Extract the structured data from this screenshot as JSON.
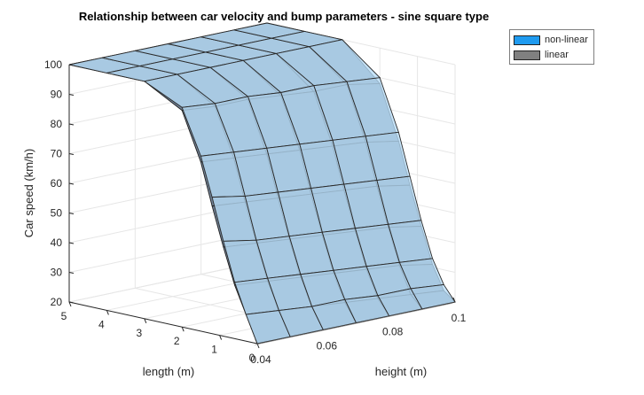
{
  "chart_data": {
    "type": "surface3d",
    "title": "Relationship between car velocity and bump parameters - sine square type",
    "xlabel": "height (m)",
    "ylabel": "length (m)",
    "zlabel": "Car speed (km/h)",
    "x_ticks": [
      "0.04",
      "0.06",
      "0.08",
      "0.1"
    ],
    "y_ticks": [
      "0",
      "1",
      "2",
      "3",
      "4",
      "5"
    ],
    "z_ticks": [
      "20",
      "30",
      "40",
      "50",
      "60",
      "70",
      "80",
      "90",
      "100"
    ],
    "xlim": [
      0.04,
      0.1
    ],
    "ylim": [
      0,
      5
    ],
    "zlim": [
      20,
      100
    ],
    "grid": true,
    "legend_position": "top-right",
    "heights": [
      0.04,
      0.05,
      0.06,
      0.07,
      0.08,
      0.09,
      0.1
    ],
    "lengths": [
      0,
      0.3,
      0.6,
      0.9,
      1.2,
      1.5,
      2,
      3,
      4,
      5
    ],
    "series": [
      {
        "name": "non-linear",
        "color": "#1f9bf0",
        "values": [
          [
            20,
            20,
            20,
            20,
            20,
            20,
            20
          ],
          [
            29,
            28,
            27,
            27,
            26,
            26,
            25
          ],
          [
            39,
            38,
            37,
            36,
            35,
            34,
            33
          ],
          [
            52,
            50,
            49,
            48,
            47,
            46,
            45
          ],
          [
            66,
            64,
            63,
            62,
            61,
            60,
            59
          ],
          [
            79,
            78,
            77,
            76,
            75,
            74,
            73
          ],
          [
            94,
            93,
            93,
            92,
            92,
            91,
            90
          ],
          [
            100,
            100,
            100,
            100,
            100,
            100,
            100
          ],
          [
            100,
            100,
            100,
            100,
            100,
            100,
            100
          ],
          [
            100,
            100,
            100,
            100,
            100,
            100,
            100
          ]
        ]
      },
      {
        "name": "linear",
        "color": "#808080",
        "values": [
          [
            20,
            20,
            20,
            20,
            20,
            20,
            20
          ],
          [
            29,
            28,
            27,
            26,
            25,
            24,
            23
          ],
          [
            38,
            37,
            36,
            35,
            34,
            33,
            31
          ],
          [
            50,
            49,
            48,
            47,
            46,
            45,
            43
          ],
          [
            63,
            62,
            61,
            60,
            59,
            58,
            56
          ],
          [
            77,
            76,
            75,
            74,
            73,
            72,
            70
          ],
          [
            93,
            92,
            92,
            91,
            90,
            90,
            88
          ],
          [
            100,
            100,
            100,
            100,
            100,
            100,
            100
          ],
          [
            100,
            100,
            100,
            100,
            100,
            100,
            100
          ],
          [
            100,
            100,
            100,
            100,
            100,
            100,
            100
          ]
        ]
      }
    ]
  },
  "legend": {
    "items": [
      {
        "label": "non-linear",
        "color": "#1f9bf0"
      },
      {
        "label": "linear",
        "color": "#808080"
      }
    ]
  }
}
